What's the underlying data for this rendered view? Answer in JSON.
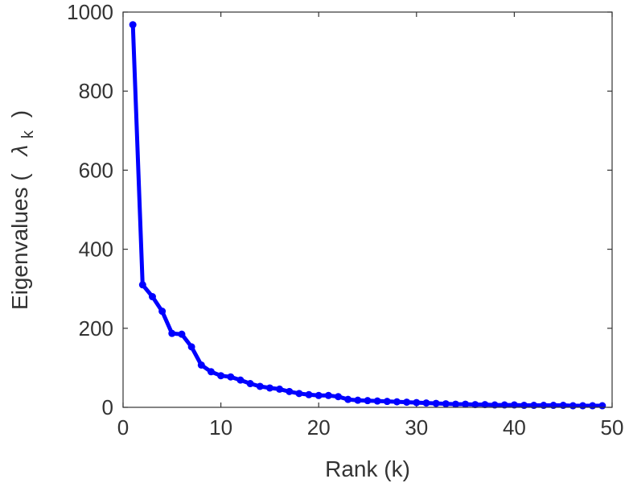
{
  "chart_data": {
    "type": "line",
    "xlabel": "Rank (k)",
    "ylabel": {
      "prefix": "Eigenvalues (",
      "symbol": "λ",
      "subscript": "k",
      "suffix": ")"
    },
    "xlim": [
      0,
      50
    ],
    "ylim": [
      0,
      1000
    ],
    "xticks": [
      0,
      10,
      20,
      30,
      40,
      50
    ],
    "yticks": [
      0,
      200,
      400,
      600,
      800,
      1000
    ],
    "grid": false,
    "series": [
      {
        "color": "#0000ff",
        "marker": "circle",
        "x": [
          1,
          2,
          3,
          4,
          5,
          6,
          7,
          8,
          9,
          10,
          11,
          12,
          13,
          14,
          15,
          16,
          17,
          18,
          19,
          20,
          21,
          22,
          23,
          24,
          25,
          26,
          27,
          28,
          29,
          30,
          31,
          32,
          33,
          34,
          35,
          36,
          37,
          38,
          39,
          40,
          41,
          42,
          43,
          44,
          45,
          46,
          47,
          48,
          49
        ],
        "y": [
          968,
          310,
          280,
          243,
          187,
          185,
          153,
          107,
          90,
          80,
          77,
          69,
          60,
          53,
          49,
          46,
          40,
          35,
          32,
          30,
          30,
          27,
          20,
          18,
          17,
          16,
          15,
          14,
          13,
          12,
          11,
          10,
          9,
          8,
          8,
          7,
          7,
          6,
          6,
          6,
          5,
          5,
          5,
          5,
          5,
          4,
          4,
          4,
          4
        ]
      }
    ]
  }
}
